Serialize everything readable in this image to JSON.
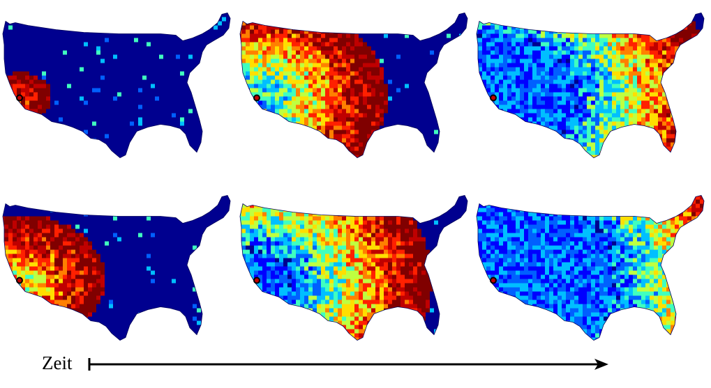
{
  "time_axis": {
    "label": "Zeit"
  },
  "colormap": [
    "#00008f",
    "#0000ff",
    "#0060ff",
    "#00bfff",
    "#40ffbf",
    "#bfff40",
    "#ffdf00",
    "#ff8000",
    "#ff2000",
    "#bf0000",
    "#800000"
  ],
  "panels": [
    {
      "id": "t1",
      "row": 1,
      "col": 1,
      "spread_stage": 0.08,
      "source_marker": true
    },
    {
      "id": "t2",
      "row": 1,
      "col": 2,
      "spread_stage": 0.45,
      "source_marker": true
    },
    {
      "id": "t3",
      "row": 1,
      "col": 3,
      "spread_stage": 0.8,
      "source_marker": true
    },
    {
      "id": "t4",
      "row": 2,
      "col": 1,
      "spread_stage": 0.28,
      "source_marker": true
    },
    {
      "id": "t5",
      "row": 2,
      "col": 2,
      "spread_stage": 0.62,
      "source_marker": true
    },
    {
      "id": "t6",
      "row": 2,
      "col": 3,
      "spread_stage": 0.95,
      "source_marker": true
    }
  ]
}
